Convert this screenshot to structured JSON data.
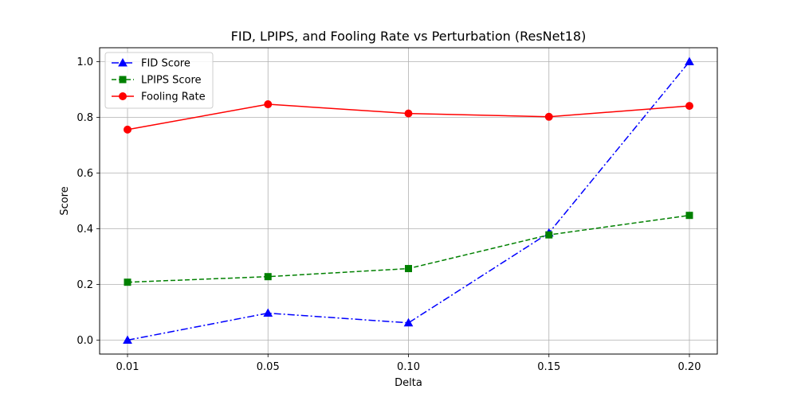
{
  "chart_data": {
    "type": "line",
    "title": "FID, LPIPS, and Fooling Rate vs Perturbation (ResNet18)",
    "xlabel": "Delta",
    "ylabel": "Score",
    "categories": [
      "0.01",
      "0.05",
      "0.10",
      "0.15",
      "0.20"
    ],
    "ylim": [
      -0.05,
      1.05
    ],
    "yticks": [
      "0.0",
      "0.2",
      "0.4",
      "0.6",
      "0.8",
      "1.0"
    ],
    "grid": true,
    "legend_position": "top-left",
    "series": [
      {
        "name": "FID Score",
        "color": "#0000ff",
        "line_style": "dashdot",
        "marker": "triangle",
        "values": [
          0.0,
          0.097,
          0.062,
          0.385,
          1.0
        ]
      },
      {
        "name": "LPIPS Score",
        "color": "#008000",
        "line_style": "dashed",
        "marker": "square",
        "values": [
          0.208,
          0.228,
          0.257,
          0.378,
          0.448
        ]
      },
      {
        "name": "Fooling Rate",
        "color": "#ff0000",
        "line_style": "solid",
        "marker": "circle",
        "values": [
          0.756,
          0.847,
          0.814,
          0.802,
          0.841
        ]
      }
    ]
  }
}
